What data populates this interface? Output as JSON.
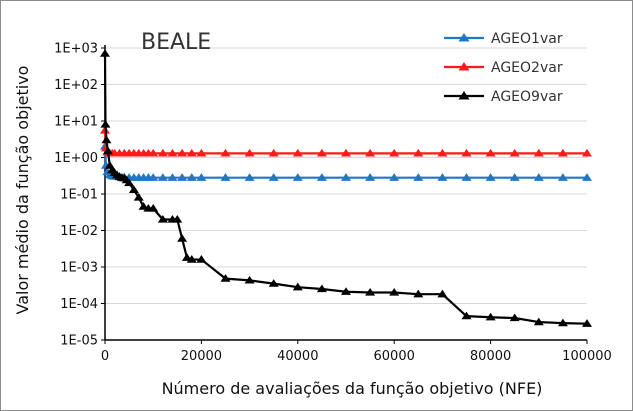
{
  "chart_data": {
    "type": "line",
    "title": "BEALE",
    "xlabel": "Número de avaliações da função objetivo (NFE)",
    "ylabel": "Valor médio da função objetivo",
    "yscale": "log",
    "xlim": [
      0,
      100000
    ],
    "ylim": [
      1e-05,
      1000
    ],
    "xticks": [
      0,
      20000,
      40000,
      60000,
      80000,
      100000
    ],
    "xtick_labels": [
      "0",
      "20000",
      "40000",
      "60000",
      "80000",
      "100000"
    ],
    "yticks": [
      1000,
      100,
      10,
      1,
      0.1,
      0.01,
      0.001,
      0.0001,
      1e-05
    ],
    "ytick_labels": [
      "1E+03",
      "1E+02",
      "1E+01",
      "1E+00",
      "1E-01",
      "1E-02",
      "1E-03",
      "1E-04",
      "1E-05"
    ],
    "legend_position": "top-right",
    "series": [
      {
        "name": "AGEO1var",
        "color": "#1f77c8",
        "marker": "triangle",
        "x": [
          0,
          200,
          500,
          1000,
          1500,
          2000,
          3000,
          4000,
          5000,
          6000,
          7000,
          8000,
          9000,
          10000,
          12000,
          14000,
          16000,
          18000,
          20000,
          25000,
          30000,
          35000,
          40000,
          45000,
          50000,
          55000,
          60000,
          65000,
          70000,
          75000,
          80000,
          85000,
          90000,
          95000,
          100000
        ],
        "y": [
          2.0,
          0.6,
          0.4,
          0.33,
          0.31,
          0.3,
          0.29,
          0.29,
          0.28,
          0.28,
          0.28,
          0.28,
          0.28,
          0.28,
          0.28,
          0.28,
          0.28,
          0.28,
          0.28,
          0.28,
          0.28,
          0.28,
          0.28,
          0.28,
          0.28,
          0.28,
          0.28,
          0.28,
          0.28,
          0.28,
          0.28,
          0.28,
          0.28,
          0.28,
          0.28
        ]
      },
      {
        "name": "AGEO2var",
        "color": "#ff1a1a",
        "marker": "triangle",
        "x": [
          0,
          200,
          500,
          1000,
          1500,
          2000,
          3000,
          4000,
          5000,
          6000,
          7000,
          8000,
          9000,
          10000,
          12000,
          14000,
          16000,
          18000,
          20000,
          25000,
          30000,
          35000,
          40000,
          45000,
          50000,
          55000,
          60000,
          65000,
          70000,
          75000,
          80000,
          85000,
          90000,
          95000,
          100000
        ],
        "y": [
          5.5,
          1.8,
          1.4,
          1.3,
          1.3,
          1.3,
          1.3,
          1.3,
          1.3,
          1.3,
          1.3,
          1.3,
          1.3,
          1.3,
          1.3,
          1.3,
          1.3,
          1.3,
          1.3,
          1.3,
          1.3,
          1.3,
          1.3,
          1.3,
          1.3,
          1.3,
          1.3,
          1.3,
          1.3,
          1.3,
          1.3,
          1.3,
          1.3,
          1.3,
          1.3
        ]
      },
      {
        "name": "AGEO9var",
        "color": "#000000",
        "marker": "triangle",
        "x": [
          0,
          100,
          300,
          600,
          1000,
          1500,
          2000,
          2500,
          3000,
          3500,
          4000,
          4500,
          5000,
          6000,
          7000,
          8000,
          9000,
          10000,
          12000,
          14000,
          15000,
          16000,
          17000,
          18000,
          20000,
          25000,
          30000,
          35000,
          40000,
          45000,
          50000,
          55000,
          60000,
          65000,
          70000,
          75000,
          80000,
          85000,
          90000,
          95000,
          100000
        ],
        "y": [
          700,
          8,
          3,
          1.5,
          0.6,
          0.45,
          0.38,
          0.33,
          0.3,
          0.28,
          0.27,
          0.24,
          0.2,
          0.13,
          0.08,
          0.045,
          0.04,
          0.04,
          0.02,
          0.02,
          0.02,
          0.006,
          0.0018,
          0.0016,
          0.0016,
          0.00048,
          0.00043,
          0.00035,
          0.00028,
          0.00025,
          0.00021,
          0.0002,
          0.0002,
          0.00018,
          0.00018,
          4.5e-05,
          4.2e-05,
          4e-05,
          3.1e-05,
          2.9e-05,
          2.8e-05
        ]
      }
    ]
  }
}
